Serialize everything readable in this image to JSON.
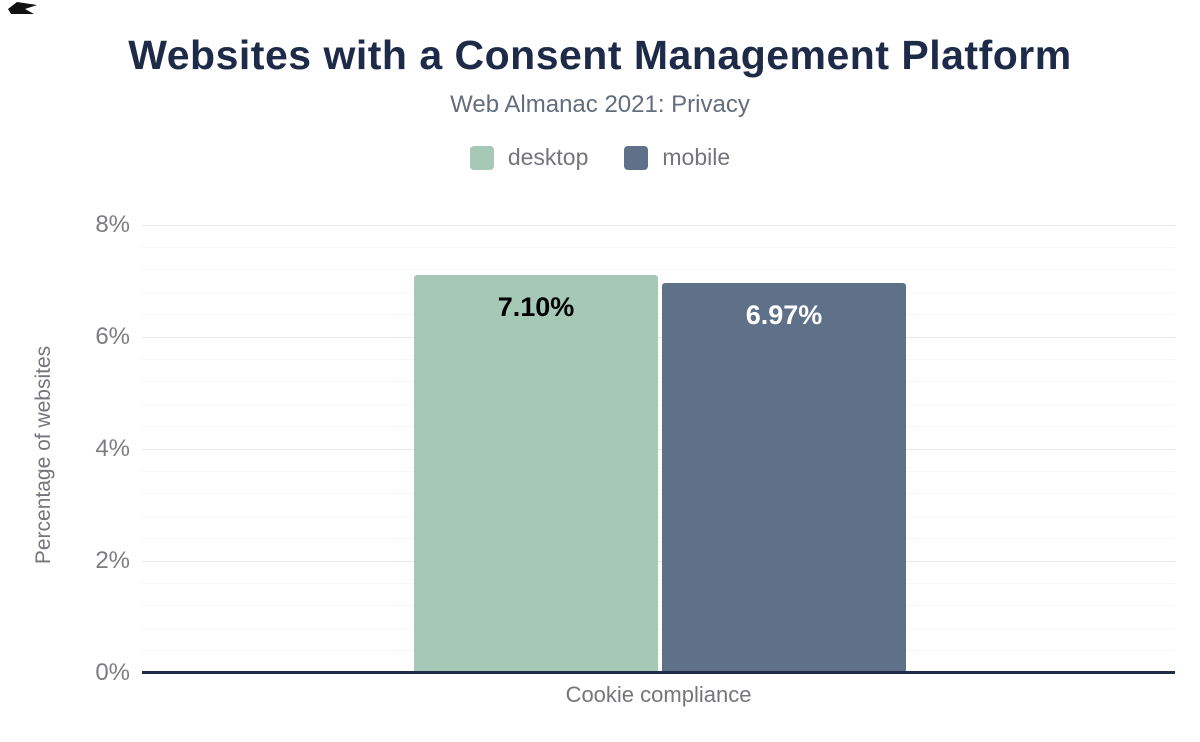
{
  "header": {
    "title": "Websites with a Consent Management Platform",
    "subtitle": "Web Almanac 2021: Privacy"
  },
  "legend": {
    "items": [
      {
        "label": "desktop",
        "color": "#a6c8b7"
      },
      {
        "label": "mobile",
        "color": "#5e7189"
      }
    ]
  },
  "chart_data": {
    "type": "bar",
    "title": "Websites with a Consent Management Platform",
    "subtitle": "Web Almanac 2021: Privacy",
    "categories": [
      "Cookie compliance"
    ],
    "series": [
      {
        "name": "desktop",
        "values": [
          7.1
        ],
        "data_label": "7.10%",
        "color": "#a6c8b7",
        "label_color": "#000000"
      },
      {
        "name": "mobile",
        "values": [
          6.97
        ],
        "data_label": "6.97%",
        "color": "#5e7189",
        "label_color": "#ffffff"
      }
    ],
    "xlabel": "Cookie compliance",
    "ylabel": "Percentage of websites",
    "ylim": [
      0,
      8
    ],
    "ytick_labels": [
      "0%",
      "2%",
      "4%",
      "6%",
      "8%"
    ],
    "ytick_values": [
      0,
      2,
      4,
      6,
      8
    ],
    "y_minor_step": 0.4,
    "grid": true,
    "legend_position": "top",
    "colors": {
      "axis_line": "#1f2b47",
      "major_grid": "#e8e8e8",
      "minor_grid": "#f6f6f6",
      "tick_text": "#7c7c84",
      "title_text": "#1d2b48",
      "subtitle_text": "#636d7e"
    }
  }
}
